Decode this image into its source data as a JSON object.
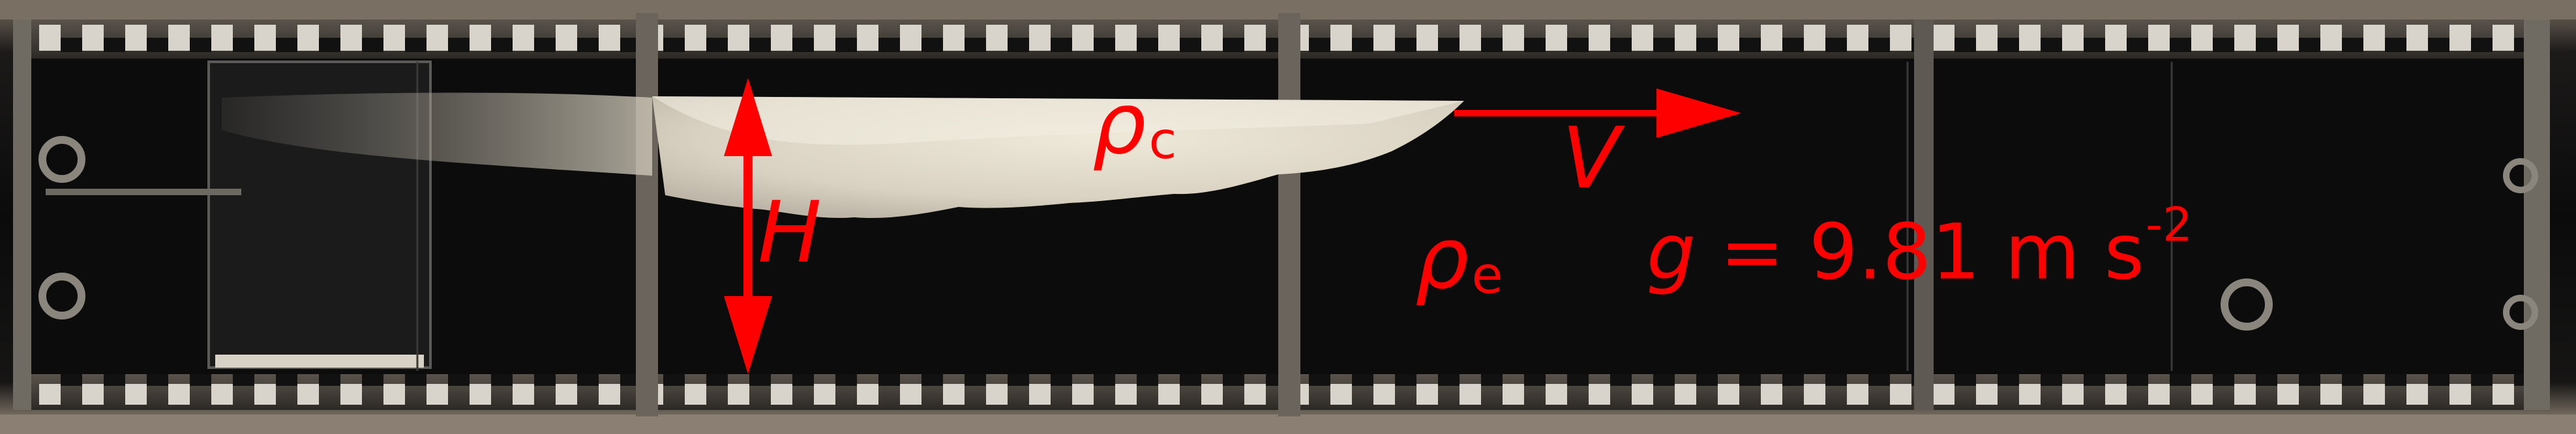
{
  "figure": {
    "labels": {
      "rho_symbol": "ρ",
      "rho_c_sub": "c",
      "rho_e_sub": "e",
      "velocity": "V",
      "height": "H",
      "gravity_symbol": "g",
      "gravity_rest": " = 9.81 m s",
      "gravity_exp": "-2"
    },
    "colors": {
      "annotation": "#ff0000",
      "current": "#e6e0d0",
      "ambient_fluid": "#0b0b0c"
    },
    "icons": [
      "double-headed-arrow-icon",
      "right-arrow-icon"
    ]
  }
}
